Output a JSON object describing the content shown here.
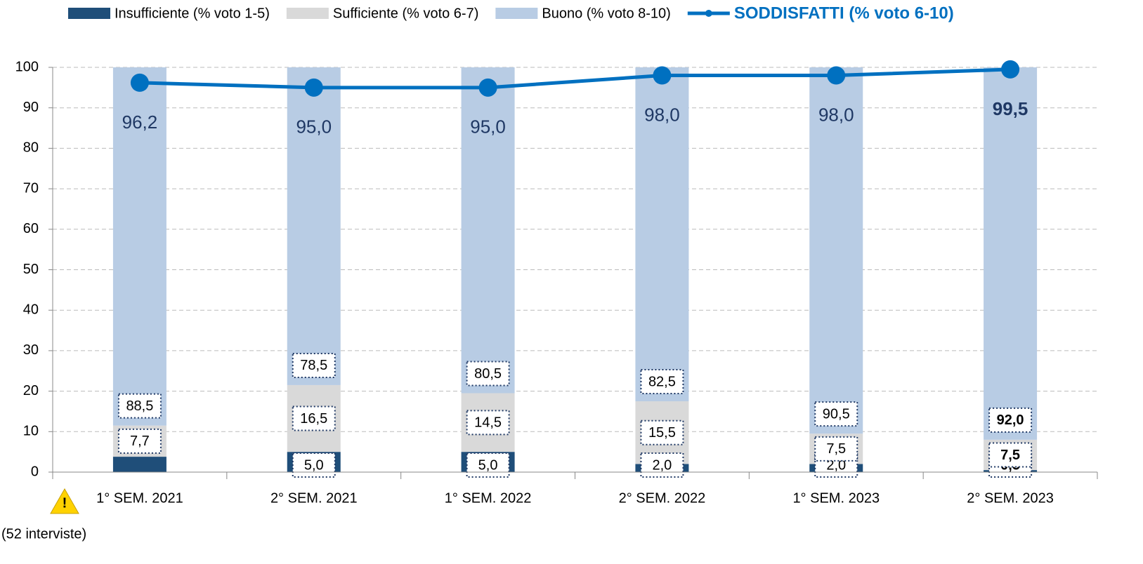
{
  "chart_data": {
    "type": "bar",
    "categories": [
      "1° SEM. 2021",
      "2° SEM. 2021",
      "1° SEM. 2022",
      "2° SEM. 2022",
      "1° SEM. 2023",
      "2° SEM. 2023"
    ],
    "series": [
      {
        "name": "Insufficiente (% voto 1-5)",
        "color": "#1f4e79",
        "values": [
          3.8,
          5.0,
          5.0,
          2.0,
          2.0,
          0.5
        ],
        "value_labels": [
          null,
          "5,0",
          "5,0",
          "2,0",
          "2,0",
          "0,5"
        ]
      },
      {
        "name": "Sufficiente (% voto 6-7)",
        "color": "#d9d9d9",
        "values": [
          7.7,
          16.5,
          14.5,
          15.5,
          7.5,
          7.5
        ],
        "value_labels": [
          "7,7",
          "16,5",
          "14,5",
          "15,5",
          "7,5",
          "7,5"
        ]
      },
      {
        "name": "Buono (% voto 8-10)",
        "color": "#b8cce4",
        "values": [
          88.5,
          78.5,
          80.5,
          82.5,
          90.5,
          92.0
        ],
        "value_labels": [
          "88,5",
          "78,5",
          "80,5",
          "82,5",
          "90,5",
          "92,0"
        ]
      },
      {
        "name": "SODDISFATTI (% voto 6-10)",
        "type": "line",
        "color": "#0070c0",
        "values": [
          96.2,
          95.0,
          95.0,
          98.0,
          98.0,
          99.5
        ],
        "value_labels": [
          "96,2",
          "95,0",
          "95,0",
          "98,0",
          "98,0",
          "99,5"
        ]
      }
    ],
    "ylim": [
      0,
      100
    ],
    "yticks": [
      0,
      10,
      20,
      30,
      40,
      50,
      60,
      70,
      80,
      90,
      100
    ],
    "grid": true,
    "annotation": "(52 interviste)"
  }
}
